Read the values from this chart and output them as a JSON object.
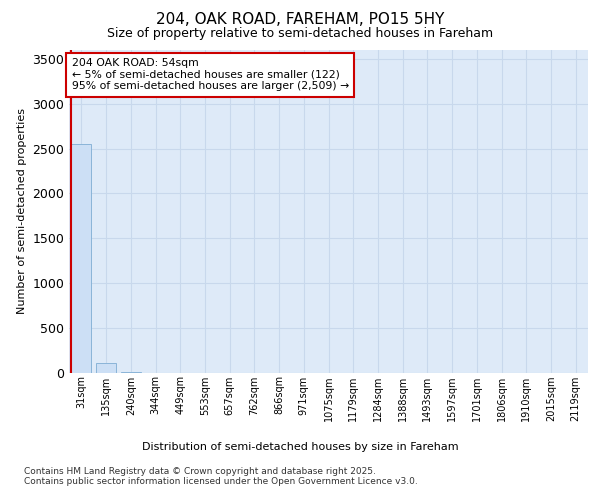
{
  "title": "204, OAK ROAD, FAREHAM, PO15 5HY",
  "subtitle": "Size of property relative to semi-detached houses in Fareham",
  "xlabel": "Distribution of semi-detached houses by size in Fareham",
  "ylabel": "Number of semi-detached properties",
  "annotation_line1": "204 OAK ROAD: 54sqm",
  "annotation_line2": "← 5% of semi-detached houses are smaller (122)",
  "annotation_line3": "95% of semi-detached houses are larger (2,509) →",
  "footer_line1": "Contains HM Land Registry data © Crown copyright and database right 2025.",
  "footer_line2": "Contains public sector information licensed under the Open Government Licence v3.0.",
  "categories": [
    "31sqm",
    "135sqm",
    "240sqm",
    "344sqm",
    "449sqm",
    "553sqm",
    "657sqm",
    "762sqm",
    "866sqm",
    "971sqm",
    "1075sqm",
    "1179sqm",
    "1284sqm",
    "1388sqm",
    "1493sqm",
    "1597sqm",
    "1701sqm",
    "1806sqm",
    "1910sqm",
    "2015sqm",
    "2119sqm"
  ],
  "values": [
    2550,
    110,
    4,
    0,
    0,
    0,
    0,
    0,
    0,
    0,
    0,
    0,
    0,
    0,
    0,
    0,
    0,
    0,
    0,
    0,
    0
  ],
  "bar_color": "#ccdff5",
  "bar_edge_color": "#8ab4d8",
  "grid_color": "#c8d8ec",
  "background_color": "#deeaf8",
  "figure_bg": "#ffffff",
  "annotation_box_color": "#ffffff",
  "annotation_border_color": "#cc0000",
  "vline_color": "#cc0000",
  "ylim": [
    0,
    3600
  ],
  "yticks": [
    0,
    500,
    1000,
    1500,
    2000,
    2500,
    3000,
    3500
  ]
}
